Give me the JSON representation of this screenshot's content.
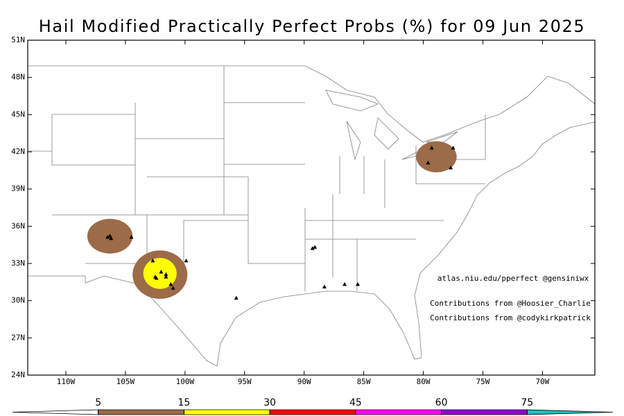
{
  "title": "Hail Modified Practically Perfect Probs (%) for 09 Jun 2025",
  "map": {
    "lon_range": [
      -113.2,
      -65.6
    ],
    "lat_range": [
      24,
      51
    ],
    "lat_ticks": [
      {
        "value": 24,
        "label": "24N"
      },
      {
        "value": 27,
        "label": "27N"
      },
      {
        "value": 30,
        "label": "30N"
      },
      {
        "value": 33,
        "label": "33N"
      },
      {
        "value": 36,
        "label": "36N"
      },
      {
        "value": 39,
        "label": "39N"
      },
      {
        "value": 42,
        "label": "42N"
      },
      {
        "value": 45,
        "label": "45N"
      },
      {
        "value": 48,
        "label": "48N"
      },
      {
        "value": 51,
        "label": "51N"
      }
    ],
    "lon_ticks": [
      {
        "value": -110,
        "label": "110W"
      },
      {
        "value": -105,
        "label": "105W"
      },
      {
        "value": -100,
        "label": "100W"
      },
      {
        "value": -95,
        "label": "95W"
      },
      {
        "value": -90,
        "label": "90W"
      },
      {
        "value": -85,
        "label": "85W"
      },
      {
        "value": -80,
        "label": "80W"
      },
      {
        "value": -75,
        "label": "75W"
      },
      {
        "value": -70,
        "label": "70W"
      }
    ],
    "contours": [
      {
        "level": 5,
        "lon": -106.3,
        "lat": 35.2,
        "rx": 1.9,
        "ry": 1.4
      },
      {
        "level": 5,
        "lon": -102.1,
        "lat": 32.1,
        "rx": 2.3,
        "ry": 1.95
      },
      {
        "level": 5,
        "lon": -78.9,
        "lat": 41.6,
        "rx": 1.7,
        "ry": 1.25
      },
      {
        "level": 15,
        "lon": -102.1,
        "lat": 32.2,
        "rx": 1.4,
        "ry": 1.25
      }
    ],
    "reports": [
      {
        "lon": -106.5,
        "lat": 35.1
      },
      {
        "lon": -106.2,
        "lat": 35.0
      },
      {
        "lon": -106.3,
        "lat": 35.2
      },
      {
        "lon": -104.5,
        "lat": 35.1
      },
      {
        "lon": -102.7,
        "lat": 33.2
      },
      {
        "lon": -102.0,
        "lat": 32.3
      },
      {
        "lon": -102.5,
        "lat": 31.9
      },
      {
        "lon": -102.4,
        "lat": 31.8
      },
      {
        "lon": -101.6,
        "lat": 32.1
      },
      {
        "lon": -101.6,
        "lat": 31.9
      },
      {
        "lon": -101.2,
        "lat": 31.3
      },
      {
        "lon": -101.0,
        "lat": 31.0
      },
      {
        "lon": -99.9,
        "lat": 33.2
      },
      {
        "lon": -95.7,
        "lat": 30.2
      },
      {
        "lon": -89.3,
        "lat": 34.2
      },
      {
        "lon": -89.1,
        "lat": 34.3
      },
      {
        "lon": -88.3,
        "lat": 31.1
      },
      {
        "lon": -86.6,
        "lat": 31.3
      },
      {
        "lon": -85.5,
        "lat": 31.3
      },
      {
        "lon": -79.3,
        "lat": 42.3
      },
      {
        "lon": -79.6,
        "lat": 41.1
      },
      {
        "lon": -77.5,
        "lat": 42.3
      },
      {
        "lon": -77.7,
        "lat": 40.7
      }
    ]
  },
  "credits": [
    "atlas.niu.edu/pperfect @gensiniwx",
    "Contributions from @Hoosier_Charlie",
    "Contributions from @codykirkpatrick"
  ],
  "colorbar": {
    "levels": [
      5,
      15,
      30,
      45,
      60,
      75
    ],
    "colors": [
      "#ffffff",
      "#9c6b48",
      "#ffff00",
      "#ff0000",
      "#ff00ff",
      "#9000d0",
      "#20c0c0"
    ]
  }
}
